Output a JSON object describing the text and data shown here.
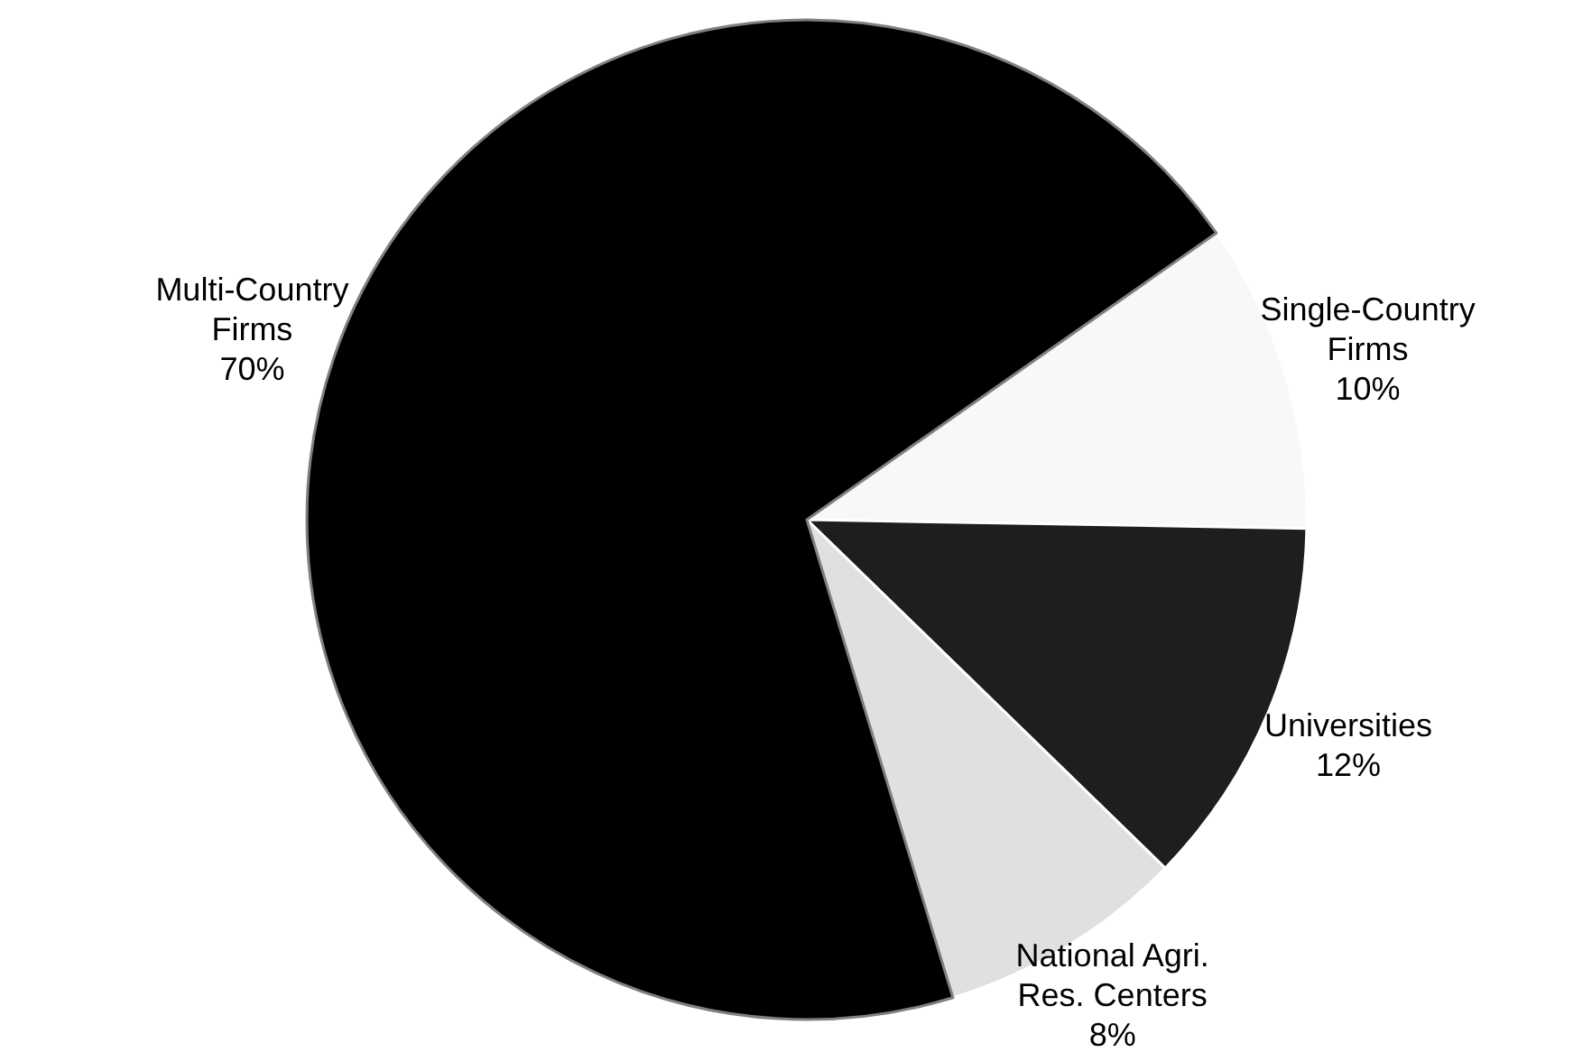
{
  "chart_data": {
    "type": "pie",
    "categories": [
      "Single-Country\nFirms",
      "Universities",
      "National Agri.\nRes. Centers",
      "Multi-Country\nFirms"
    ],
    "values": [
      10,
      12,
      8,
      70
    ],
    "value_labels": [
      "10%",
      "12%",
      "8%",
      "70%"
    ],
    "colors": [
      "#f8f8f8",
      "#1e1e1e",
      "#e0e0e0",
      "#000000"
    ]
  }
}
